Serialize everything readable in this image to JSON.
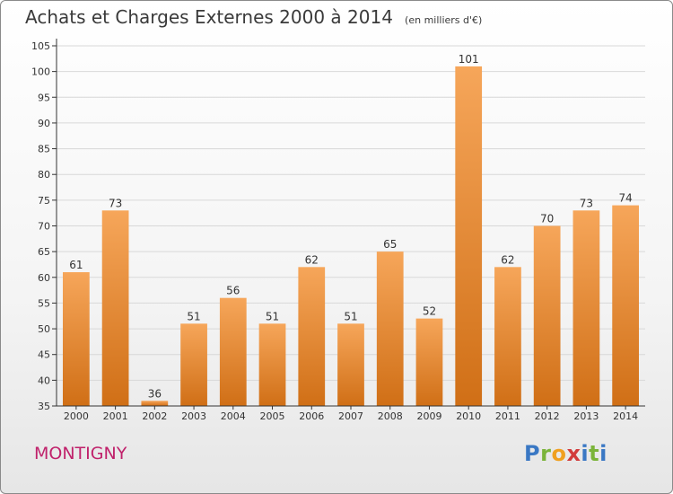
{
  "title": "Achats et Charges Externes 2000 à 2014",
  "unit_note": "(en milliers d'€)",
  "commune": "MONTIGNY",
  "logo_text": "Proxiti",
  "colors": {
    "bar_light": "#f6a65a",
    "bar_dark": "#d06f16",
    "grid": "#d8d8d8",
    "axis": "#333333",
    "commune": "#c0216b"
  },
  "chart_data": {
    "type": "bar",
    "title": "Achats et Charges Externes 2000 à 2014",
    "xlabel": "",
    "ylabel": "",
    "ylim": [
      35,
      105
    ],
    "y_ticks": [
      35,
      40,
      45,
      50,
      55,
      60,
      65,
      70,
      75,
      80,
      85,
      90,
      95,
      100,
      105
    ],
    "grid": true,
    "categories": [
      "2000",
      "2001",
      "2002",
      "2003",
      "2004",
      "2005",
      "2006",
      "2007",
      "2008",
      "2009",
      "2010",
      "2011",
      "2012",
      "2013",
      "2014"
    ],
    "values": [
      61,
      73,
      36,
      51,
      56,
      51,
      62,
      51,
      65,
      52,
      101,
      62,
      70,
      73,
      74
    ]
  }
}
